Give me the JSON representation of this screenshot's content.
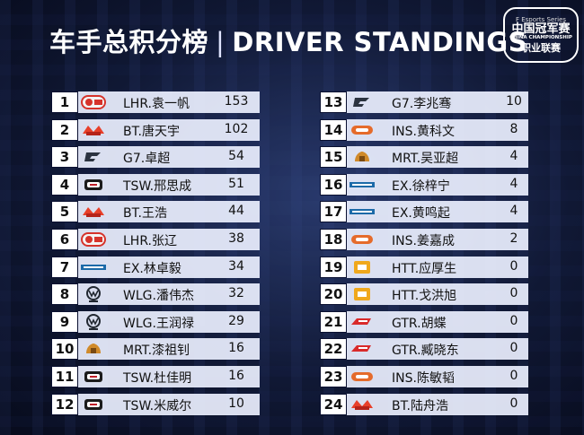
{
  "title": {
    "cn": "车手总积分榜",
    "separator": "|",
    "en": "DRIVER STANDINGS"
  },
  "logo": {
    "line1": "F Esports Series",
    "line2": "中国冠军赛",
    "line3": "CHINA CHAMPIONSHIP",
    "line4": "职业联赛"
  },
  "left": [
    {
      "rank": "1",
      "team": "LHR",
      "name": "LHR.袁一帆",
      "points": "153"
    },
    {
      "rank": "2",
      "team": "BT",
      "name": "BT.唐天宇",
      "points": "102"
    },
    {
      "rank": "3",
      "team": "G7",
      "name": "G7.卓超",
      "points": "54"
    },
    {
      "rank": "4",
      "team": "TSW",
      "name": "TSW.邢思成",
      "points": "51"
    },
    {
      "rank": "5",
      "team": "BT",
      "name": "BT.王浩",
      "points": "44"
    },
    {
      "rank": "6",
      "team": "LHR",
      "name": "LHR.张辽",
      "points": "38"
    },
    {
      "rank": "7",
      "team": "EX",
      "name": "EX.林卓毅",
      "points": "34"
    },
    {
      "rank": "8",
      "team": "WLG",
      "name": "WLG.潘伟杰",
      "points": "32"
    },
    {
      "rank": "9",
      "team": "WLG",
      "name": "WLG.王润禄",
      "points": "29"
    },
    {
      "rank": "10",
      "team": "MRT",
      "name": "MRT.漆祖钊",
      "points": "16"
    },
    {
      "rank": "11",
      "team": "TSW",
      "name": "TSW.杜佳明",
      "points": "16"
    },
    {
      "rank": "12",
      "team": "TSW",
      "name": "TSW.米威尔",
      "points": "10"
    }
  ],
  "right": [
    {
      "rank": "13",
      "team": "G7",
      "name": "G7.李兆骞",
      "points": "10"
    },
    {
      "rank": "14",
      "team": "INS",
      "name": "INS.黄科文",
      "points": "8"
    },
    {
      "rank": "15",
      "team": "MRT",
      "name": "MRT.吴亚超",
      "points": "4"
    },
    {
      "rank": "16",
      "team": "EX",
      "name": "EX.徐梓宁",
      "points": "4"
    },
    {
      "rank": "17",
      "team": "EX",
      "name": "EX.黄鸣起",
      "points": "4"
    },
    {
      "rank": "18",
      "team": "INS",
      "name": "INS.姜嘉成",
      "points": "2"
    },
    {
      "rank": "19",
      "team": "HTT",
      "name": "HTT.应厚生",
      "points": "0"
    },
    {
      "rank": "20",
      "team": "HTT",
      "name": "HTT.戈洪旭",
      "points": "0"
    },
    {
      "rank": "21",
      "team": "GTR",
      "name": "GTR.胡蝶",
      "points": "0"
    },
    {
      "rank": "22",
      "team": "GTR",
      "name": "GTR.臧晓东",
      "points": "0"
    },
    {
      "rank": "23",
      "team": "INS",
      "name": "INS.陈敏韬",
      "points": "0"
    },
    {
      "rank": "24",
      "team": "BT",
      "name": "BT.陆舟浩",
      "points": "0"
    }
  ],
  "team_icons": {
    "LHR": {
      "icon": "lhr-team-logo-icon",
      "color": "#d6332b"
    },
    "BT": {
      "icon": "bt-team-logo-icon",
      "color": "#e8402a"
    },
    "G7": {
      "icon": "g7-team-logo-icon",
      "color": "#2b3340"
    },
    "TSW": {
      "icon": "tsw-team-logo-icon",
      "color": "#c0202a"
    },
    "EX": {
      "icon": "ex-team-logo-icon",
      "color": "#1c6aa8"
    },
    "WLG": {
      "icon": "wlg-team-logo-icon",
      "color": "#222831"
    },
    "MRT": {
      "icon": "mrt-team-logo-icon",
      "color": "#d08a2a"
    },
    "INS": {
      "icon": "ins-team-logo-icon",
      "color": "#e56b2b"
    },
    "HTT": {
      "icon": "htt-team-logo-icon",
      "color": "#f0a81c"
    },
    "GTR": {
      "icon": "gtr-team-logo-icon",
      "color": "#d92a2a"
    }
  }
}
